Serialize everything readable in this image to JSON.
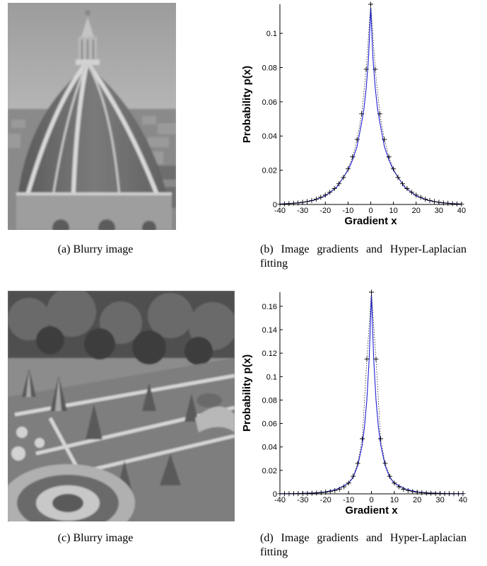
{
  "figures": [
    {
      "id": "a",
      "caption": "(a) Blurry image",
      "image_content": "Blurry grayscale photo of a cathedral dome over a city"
    },
    {
      "id": "b",
      "caption": "(b)  Image  gradients  and  Hyper-Laplacian fitting"
    },
    {
      "id": "c",
      "caption": "(c) Blurry image",
      "image_content": "Blurry grayscale photo of a formal garden with topiary below trees"
    },
    {
      "id": "d",
      "caption": "(d)  Image  gradients  and  Hyper-Laplacian fitting"
    }
  ],
  "chart_data": [
    {
      "type": "line",
      "panel": "b",
      "xlabel": "Gradient x",
      "ylabel": "Probability p(x)",
      "xlim": [
        -40,
        40
      ],
      "ylim": [
        0,
        0.117
      ],
      "xticks": [
        -40,
        -30,
        -20,
        -10,
        0,
        10,
        20,
        30,
        40
      ],
      "yticks": [
        0,
        0.02,
        0.04,
        0.06,
        0.08,
        0.1
      ],
      "ytick_labels": [
        "0",
        "0.02",
        "0.04",
        "0.06",
        "0.08",
        "0.1"
      ],
      "series": [
        {
          "style": "blue solid line",
          "x": [
            -40,
            -35,
            -30,
            -25,
            -20,
            -15,
            -10,
            -8,
            -6,
            -4,
            -3,
            -2,
            -1,
            0,
            1,
            2,
            3,
            4,
            6,
            8,
            10,
            15,
            20,
            25,
            30,
            35,
            40
          ],
          "y": [
            0.0003,
            0.0006,
            0.0012,
            0.0025,
            0.005,
            0.01,
            0.02,
            0.026,
            0.034,
            0.048,
            0.056,
            0.068,
            0.085,
            0.115,
            0.085,
            0.068,
            0.056,
            0.048,
            0.034,
            0.026,
            0.02,
            0.01,
            0.005,
            0.0025,
            0.0012,
            0.0006,
            0.0003
          ]
        },
        {
          "style": "black dotted line with + markers",
          "x": [
            -40,
            -38,
            -36,
            -34,
            -32,
            -30,
            -28,
            -26,
            -24,
            -22,
            -20,
            -18,
            -16,
            -14,
            -12,
            -10,
            -8,
            -6,
            -4,
            -2,
            0,
            2,
            4,
            6,
            8,
            10,
            12,
            14,
            16,
            18,
            20,
            22,
            24,
            26,
            28,
            30,
            32,
            34,
            36,
            38,
            40
          ],
          "y": [
            0.0002,
            0.0003,
            0.0005,
            0.0007,
            0.0009,
            0.0013,
            0.0017,
            0.0023,
            0.0031,
            0.0042,
            0.0055,
            0.0071,
            0.0093,
            0.0121,
            0.0158,
            0.0208,
            0.0278,
            0.038,
            0.053,
            0.079,
            0.117,
            0.079,
            0.053,
            0.038,
            0.0278,
            0.0208,
            0.0158,
            0.0121,
            0.0093,
            0.0071,
            0.0055,
            0.0042,
            0.0031,
            0.0023,
            0.0017,
            0.0013,
            0.0009,
            0.0007,
            0.0005,
            0.0003,
            0.0002
          ]
        }
      ]
    },
    {
      "type": "line",
      "panel": "d",
      "xlabel": "Gradient x",
      "ylabel": "Probability p(x)",
      "xlim": [
        -40,
        40
      ],
      "ylim": [
        0,
        0.172
      ],
      "xticks": [
        -40,
        -30,
        -20,
        -10,
        0,
        10,
        20,
        30,
        40
      ],
      "yticks": [
        0,
        0.02,
        0.04,
        0.06,
        0.08,
        0.1,
        0.12,
        0.14,
        0.16
      ],
      "ytick_labels": [
        "0",
        "0.02",
        "0.04",
        "0.06",
        "0.08",
        "0.1",
        "0.12",
        "0.14",
        "0.16"
      ],
      "series": [
        {
          "style": "blue solid line",
          "x": [
            -40,
            -35,
            -30,
            -25,
            -20,
            -15,
            -10,
            -8,
            -6,
            -4,
            -3,
            -2,
            -1,
            0,
            1,
            2,
            3,
            4,
            6,
            8,
            10,
            15,
            20,
            25,
            30,
            35,
            40
          ],
          "y": [
            0.0001,
            0.0002,
            0.0004,
            0.0008,
            0.0016,
            0.004,
            0.009,
            0.014,
            0.024,
            0.042,
            0.058,
            0.08,
            0.115,
            0.17,
            0.115,
            0.08,
            0.058,
            0.042,
            0.024,
            0.014,
            0.009,
            0.004,
            0.0016,
            0.0008,
            0.0004,
            0.0002,
            0.0001
          ]
        },
        {
          "style": "black + markers",
          "x": [
            -40,
            -38,
            -36,
            -34,
            -32,
            -30,
            -28,
            -26,
            -24,
            -22,
            -20,
            -18,
            -16,
            -14,
            -12,
            -10,
            -8,
            -6,
            -4,
            -2,
            0,
            2,
            4,
            6,
            8,
            10,
            12,
            14,
            16,
            18,
            20,
            22,
            24,
            26,
            28,
            30,
            32,
            34,
            36,
            38,
            40
          ],
          "y": [
            0.0001,
            0.0001,
            0.0001,
            0.0002,
            0.0002,
            0.0003,
            0.0004,
            0.0005,
            0.0007,
            0.001,
            0.0014,
            0.0019,
            0.0028,
            0.004,
            0.006,
            0.0092,
            0.015,
            0.026,
            0.047,
            0.115,
            0.172,
            0.115,
            0.047,
            0.026,
            0.015,
            0.0092,
            0.006,
            0.004,
            0.0028,
            0.0019,
            0.0014,
            0.001,
            0.0007,
            0.0005,
            0.0004,
            0.0003,
            0.0002,
            0.0002,
            0.0001,
            0.0001,
            0.0001
          ]
        }
      ]
    }
  ]
}
